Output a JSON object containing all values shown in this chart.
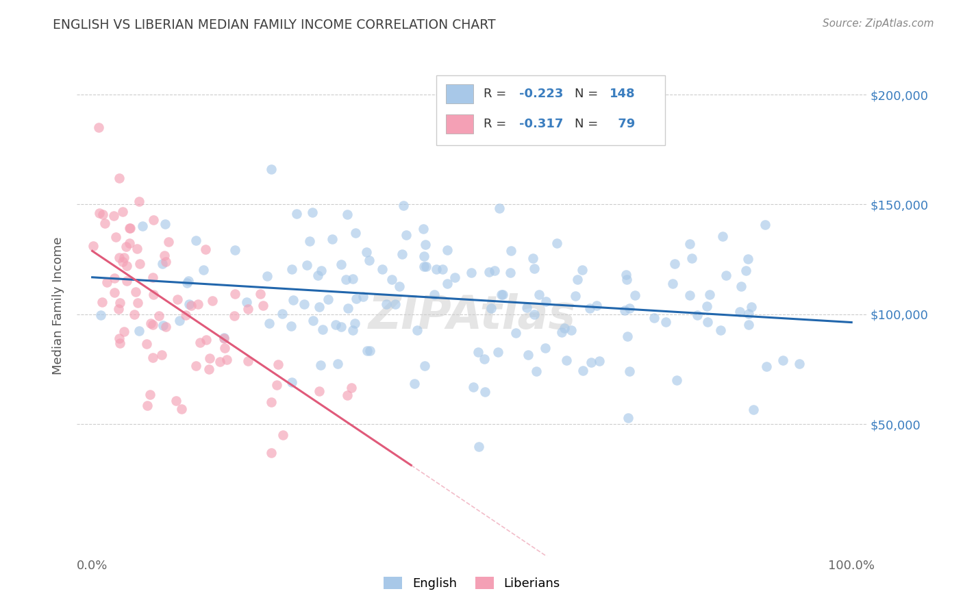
{
  "title": "ENGLISH VS LIBERIAN MEDIAN FAMILY INCOME CORRELATION CHART",
  "source": "Source: ZipAtlas.com",
  "ylabel": "Median Family Income",
  "xtick_labels": [
    "0.0%",
    "100.0%"
  ],
  "ytick_labels": [
    "$50,000",
    "$100,000",
    "$150,000",
    "$200,000"
  ],
  "ytick_values": [
    50000,
    100000,
    150000,
    200000
  ],
  "legend_label1": "English",
  "legend_label2": "Liberians",
  "color_english": "#a8c8e8",
  "color_liberian": "#f4a0b5",
  "color_line_english": "#2166ac",
  "color_line_liberian": "#e05a7a",
  "color_watermark": "#d0d0d0",
  "watermark_text": "ZIPAtlas",
  "background_color": "#ffffff",
  "grid_color": "#cccccc",
  "title_color": "#404040",
  "source_color": "#888888"
}
